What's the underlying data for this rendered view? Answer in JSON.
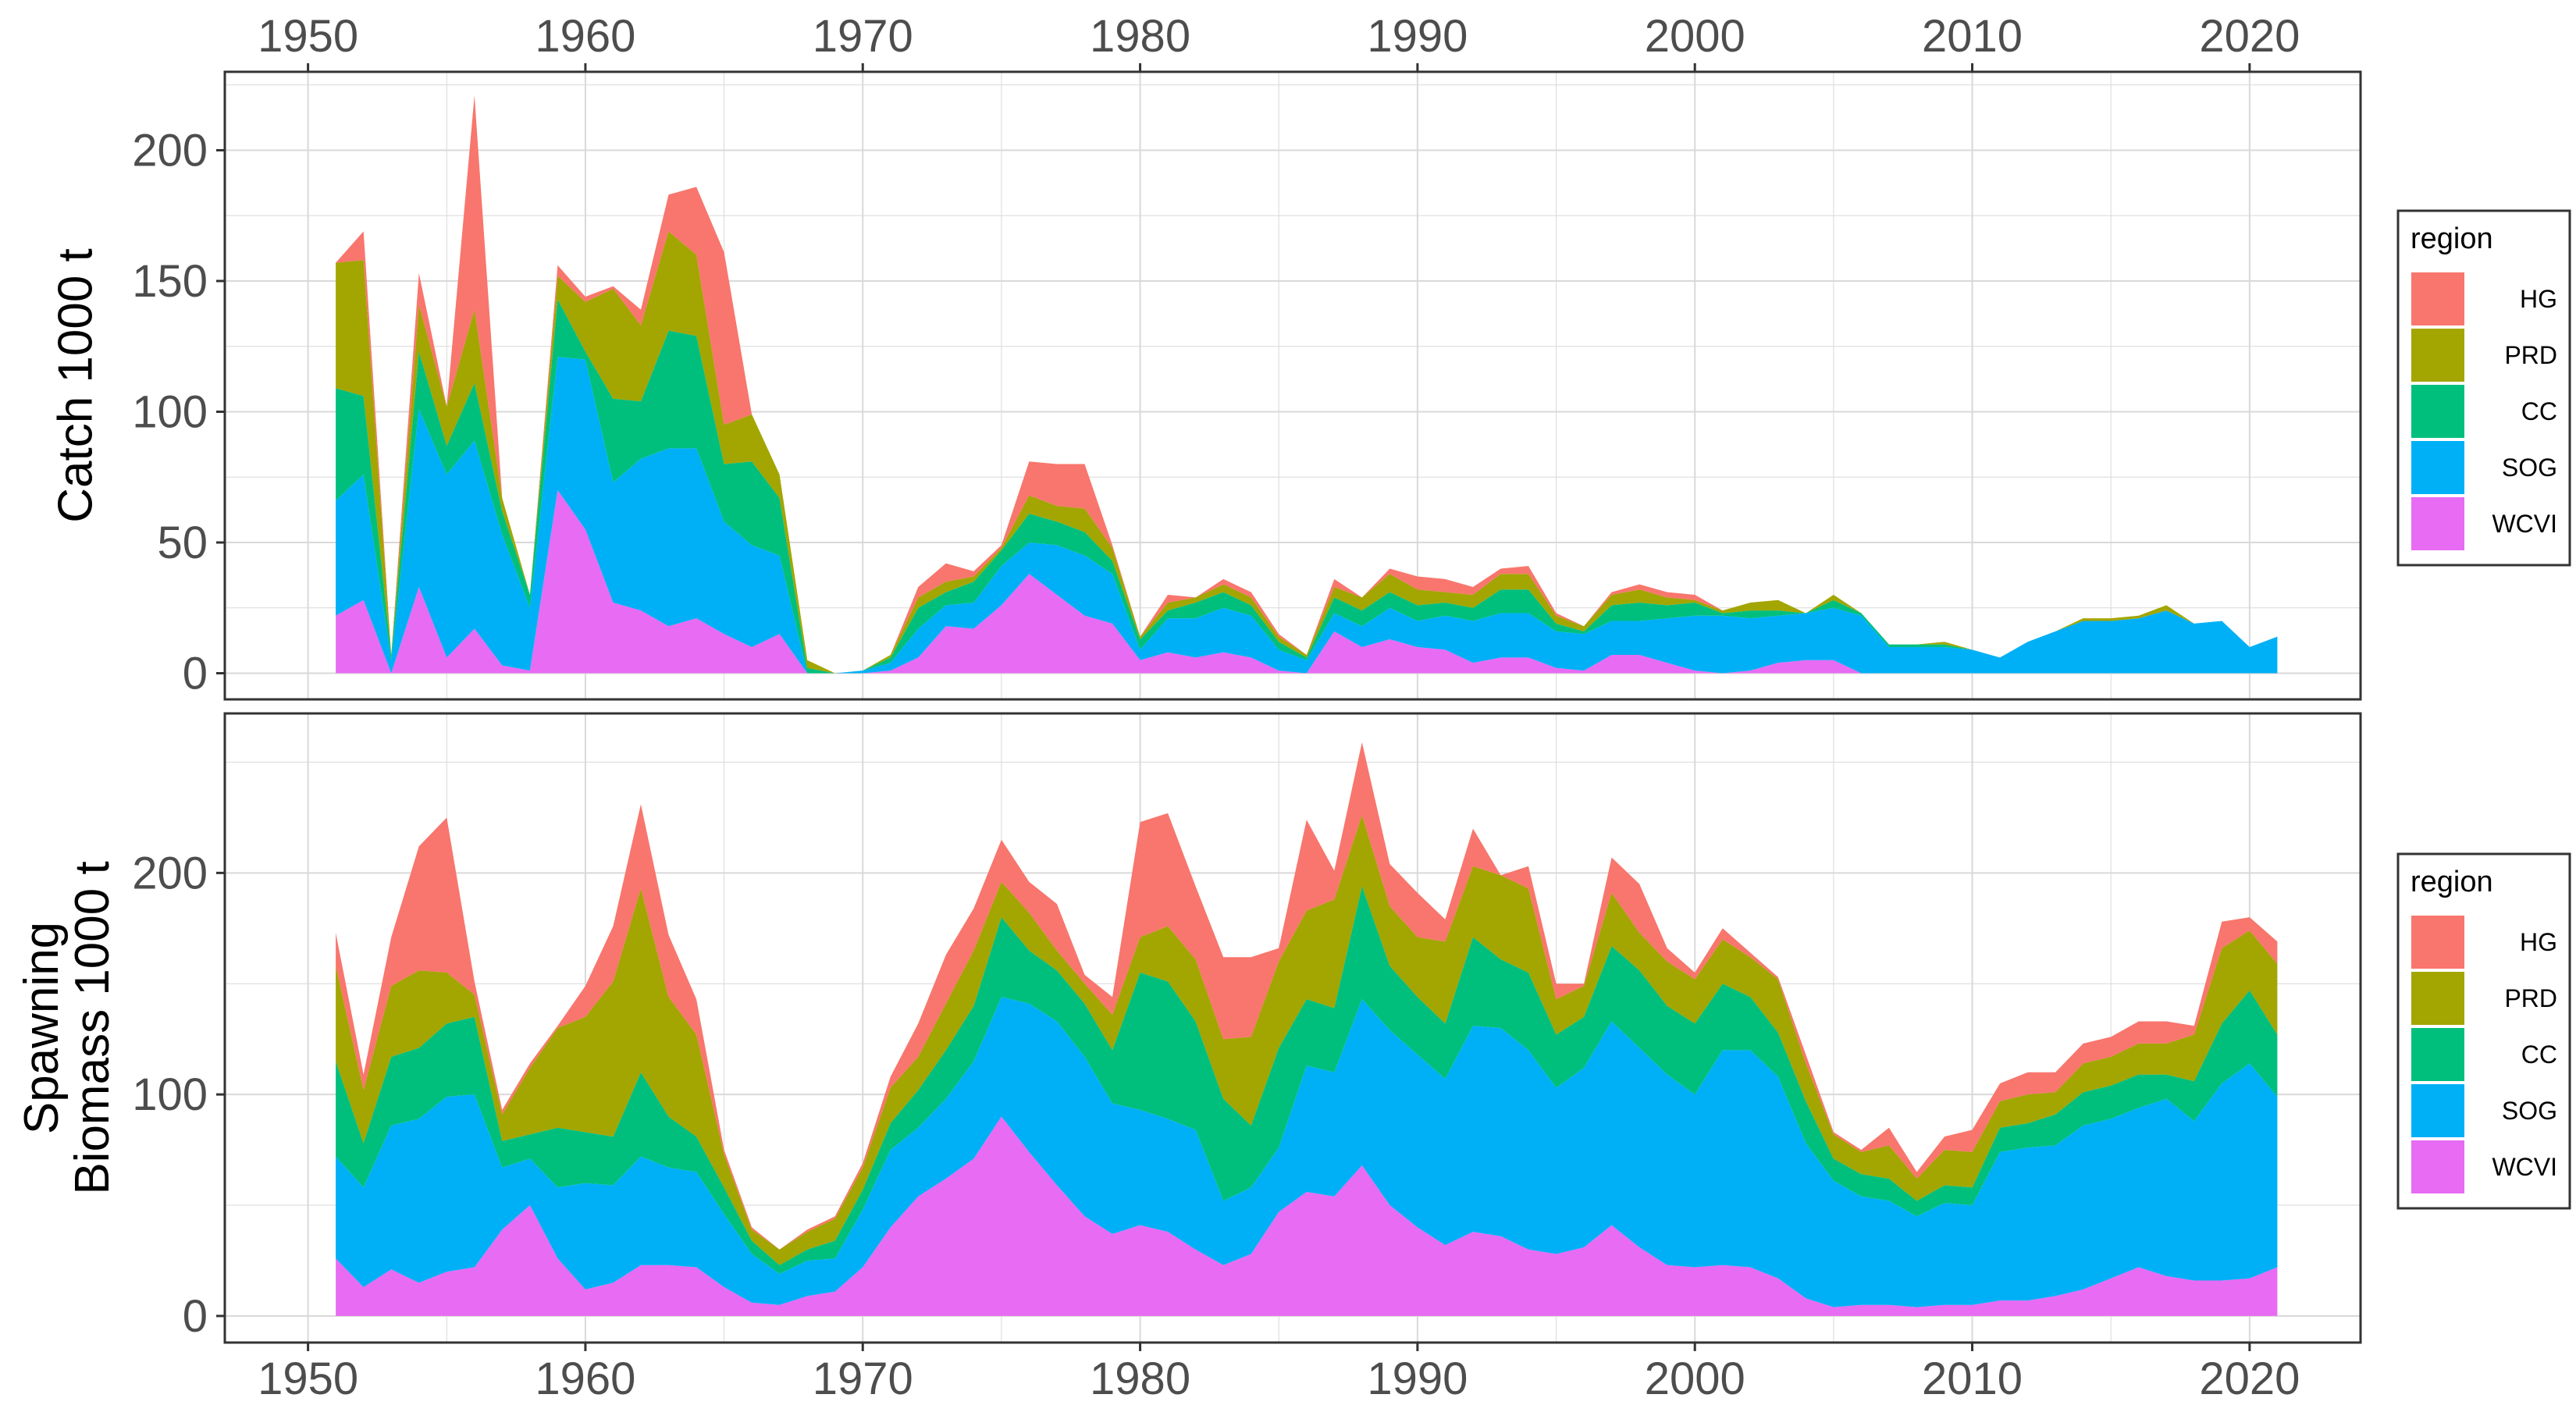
{
  "chart_data": [
    {
      "type": "area",
      "stacked": true,
      "ylabel": "Catch 1000 t",
      "xlabel": "",
      "xlim": [
        1947,
        2024
      ],
      "ylim": [
        -10,
        230
      ],
      "x_ticks": [
        1950,
        1960,
        1970,
        1980,
        1990,
        2000,
        2010,
        2020
      ],
      "y_ticks": [
        0,
        50,
        100,
        150,
        200
      ],
      "x_axis_position": "top",
      "grid": true,
      "legend": {
        "title": "region",
        "position": "right"
      },
      "x": [
        1951,
        1952,
        1953,
        1954,
        1955,
        1956,
        1957,
        1958,
        1959,
        1960,
        1961,
        1962,
        1963,
        1964,
        1965,
        1966,
        1967,
        1968,
        1969,
        1970,
        1971,
        1972,
        1973,
        1974,
        1975,
        1976,
        1977,
        1978,
        1979,
        1980,
        1981,
        1982,
        1983,
        1984,
        1985,
        1986,
        1987,
        1988,
        1989,
        1990,
        1991,
        1992,
        1993,
        1994,
        1995,
        1996,
        1997,
        1998,
        1999,
        2000,
        2001,
        2002,
        2003,
        2004,
        2005,
        2006,
        2007,
        2008,
        2009,
        2010,
        2011,
        2012,
        2013,
        2014,
        2015,
        2016,
        2017,
        2018,
        2019,
        2020,
        2021
      ],
      "series": [
        {
          "name": "WCVI",
          "values": [
            22,
            28,
            0,
            33,
            6,
            17,
            3,
            1,
            70,
            55,
            27,
            24,
            18,
            21,
            15,
            10,
            15,
            0,
            0,
            0,
            1,
            6,
            18,
            17,
            26,
            38,
            30,
            22,
            19,
            5,
            8,
            6,
            8,
            6,
            1,
            0,
            16,
            10,
            13,
            10,
            9,
            4,
            6,
            6,
            2,
            1,
            7,
            7,
            4,
            1,
            0,
            1,
            4,
            5,
            5,
            0,
            0,
            0,
            0,
            0,
            0,
            0,
            0,
            0,
            0,
            0,
            0,
            0,
            0,
            0,
            0
          ]
        },
        {
          "name": "SOG",
          "values": [
            44,
            48,
            5,
            68,
            70,
            72,
            50,
            24,
            51,
            65,
            46,
            58,
            68,
            65,
            43,
            39,
            30,
            0,
            0,
            1,
            3,
            11,
            8,
            10,
            15,
            12,
            19,
            23,
            19,
            4,
            13,
            15,
            17,
            16,
            8,
            5,
            7,
            8,
            12,
            10,
            13,
            16,
            17,
            17,
            14,
            14,
            13,
            13,
            17,
            21,
            22,
            20,
            18,
            18,
            20,
            22,
            10,
            10,
            10,
            9,
            6,
            12,
            16,
            20,
            20,
            21,
            24,
            19,
            20,
            10,
            14
          ]
        },
        {
          "name": "CC",
          "values": [
            43,
            30,
            2,
            22,
            11,
            22,
            9,
            5,
            22,
            3,
            32,
            22,
            45,
            43,
            22,
            32,
            22,
            2,
            0,
            0,
            2,
            8,
            5,
            8,
            6,
            11,
            9,
            9,
            5,
            4,
            3,
            6,
            6,
            4,
            3,
            1,
            6,
            6,
            6,
            6,
            5,
            5,
            9,
            9,
            3,
            1,
            6,
            7,
            5,
            5,
            1,
            3,
            2,
            0,
            3,
            1,
            1,
            1,
            1,
            0,
            0,
            0,
            0,
            0,
            0,
            0,
            0,
            0,
            0,
            0,
            0
          ]
        },
        {
          "name": "PRD",
          "values": [
            48,
            52,
            0,
            18,
            15,
            28,
            5,
            0,
            9,
            19,
            42,
            29,
            38,
            31,
            15,
            18,
            9,
            3,
            0,
            0,
            1,
            4,
            4,
            2,
            1,
            7,
            6,
            9,
            5,
            1,
            3,
            2,
            3,
            3,
            2,
            1,
            4,
            5,
            7,
            6,
            4,
            5,
            6,
            6,
            3,
            2,
            4,
            5,
            3,
            1,
            1,
            3,
            4,
            0,
            2,
            0,
            0,
            0,
            1,
            0,
            0,
            0,
            0,
            1,
            1,
            1,
            2,
            0,
            0,
            0,
            0
          ]
        },
        {
          "name": "HG",
          "values": [
            0,
            11,
            0,
            12,
            0,
            82,
            0,
            0,
            4,
            2,
            1,
            6,
            14,
            26,
            66,
            0,
            0,
            0,
            0,
            0,
            0,
            4,
            7,
            2,
            1,
            13,
            16,
            17,
            1,
            0,
            3,
            0,
            2,
            2,
            1,
            0,
            3,
            0,
            2,
            5,
            5,
            3,
            2,
            3,
            1,
            0,
            1,
            2,
            2,
            2,
            0,
            0,
            0,
            0,
            0,
            0,
            0,
            0,
            0,
            0,
            0,
            0,
            0,
            0,
            0,
            0,
            0,
            0,
            0,
            0,
            0
          ]
        }
      ]
    },
    {
      "type": "area",
      "stacked": true,
      "ylabel": "Spawning\nBiomass 1000 t",
      "xlabel": "",
      "xlim": [
        1947,
        2024
      ],
      "ylim": [
        -12,
        272
      ],
      "x_ticks": [
        1950,
        1960,
        1970,
        1980,
        1990,
        2000,
        2010,
        2020
      ],
      "y_ticks": [
        0,
        100,
        200
      ],
      "x_axis_position": "bottom",
      "grid": true,
      "legend": {
        "title": "region",
        "position": "right"
      },
      "x": [
        1951,
        1952,
        1953,
        1954,
        1955,
        1956,
        1957,
        1958,
        1959,
        1960,
        1961,
        1962,
        1963,
        1964,
        1965,
        1966,
        1967,
        1968,
        1969,
        1970,
        1971,
        1972,
        1973,
        1974,
        1975,
        1976,
        1977,
        1978,
        1979,
        1980,
        1981,
        1982,
        1983,
        1984,
        1985,
        1986,
        1987,
        1988,
        1989,
        1990,
        1991,
        1992,
        1993,
        1994,
        1995,
        1996,
        1997,
        1998,
        1999,
        2000,
        2001,
        2002,
        2003,
        2004,
        2005,
        2006,
        2007,
        2008,
        2009,
        2010,
        2011,
        2012,
        2013,
        2014,
        2015,
        2016,
        2017,
        2018,
        2019,
        2020,
        2021
      ],
      "series": [
        {
          "name": "WCVI",
          "values": [
            26,
            13,
            21,
            15,
            20,
            22,
            39,
            50,
            26,
            12,
            15,
            23,
            23,
            22,
            13,
            6,
            5,
            9,
            11,
            22,
            40,
            54,
            62,
            71,
            90,
            74,
            59,
            45,
            37,
            41,
            38,
            30,
            23,
            28,
            47,
            56,
            54,
            68,
            50,
            40,
            32,
            38,
            36,
            30,
            28,
            31,
            41,
            31,
            23,
            22,
            23,
            22,
            17,
            8,
            4,
            5,
            5,
            4,
            5,
            5,
            7,
            7,
            9,
            12,
            17,
            22,
            18,
            16,
            16,
            17,
            22
          ]
        },
        {
          "name": "SOG",
          "values": [
            46,
            45,
            65,
            74,
            79,
            78,
            28,
            21,
            32,
            48,
            44,
            49,
            44,
            43,
            33,
            22,
            14,
            16,
            15,
            26,
            35,
            31,
            36,
            44,
            54,
            67,
            74,
            72,
            59,
            52,
            51,
            54,
            29,
            30,
            29,
            57,
            56,
            75,
            79,
            78,
            75,
            93,
            94,
            90,
            75,
            81,
            92,
            90,
            86,
            78,
            97,
            98,
            91,
            70,
            57,
            49,
            47,
            41,
            46,
            45,
            67,
            69,
            68,
            74,
            72,
            72,
            80,
            72,
            89,
            97,
            77
          ]
        },
        {
          "name": "CC",
          "values": [
            43,
            20,
            31,
            32,
            33,
            35,
            12,
            11,
            27,
            23,
            22,
            38,
            23,
            16,
            12,
            6,
            4,
            5,
            8,
            9,
            12,
            17,
            22,
            25,
            36,
            24,
            23,
            24,
            24,
            62,
            62,
            49,
            46,
            28,
            45,
            30,
            29,
            51,
            29,
            26,
            25,
            40,
            31,
            35,
            24,
            23,
            34,
            35,
            31,
            32,
            30,
            24,
            20,
            19,
            10,
            10,
            10,
            7,
            8,
            8,
            11,
            11,
            14,
            15,
            15,
            15,
            11,
            18,
            27,
            33,
            28
          ]
        },
        {
          "name": "PRD",
          "values": [
            43,
            24,
            32,
            35,
            23,
            10,
            12,
            30,
            45,
            52,
            70,
            83,
            54,
            46,
            15,
            5,
            7,
            8,
            10,
            10,
            16,
            15,
            21,
            25,
            16,
            17,
            9,
            9,
            16,
            16,
            25,
            28,
            27,
            40,
            39,
            40,
            49,
            32,
            27,
            27,
            37,
            32,
            38,
            38,
            16,
            14,
            24,
            17,
            20,
            20,
            20,
            18,
            24,
            17,
            11,
            10,
            15,
            10,
            16,
            16,
            12,
            13,
            10,
            13,
            13,
            14,
            14,
            21,
            34,
            27,
            32
          ]
        },
        {
          "name": "HG",
          "values": [
            15,
            7,
            22,
            56,
            70,
            6,
            2,
            2,
            1,
            14,
            25,
            38,
            28,
            16,
            2,
            1,
            0,
            1,
            1,
            2,
            5,
            15,
            22,
            19,
            19,
            14,
            21,
            4,
            8,
            52,
            51,
            33,
            37,
            36,
            6,
            41,
            13,
            33,
            19,
            20,
            10,
            17,
            0,
            10,
            7,
            1,
            16,
            22,
            6,
            3,
            5,
            2,
            1,
            4,
            1,
            1,
            8,
            3,
            6,
            10,
            8,
            10,
            9,
            9,
            9,
            10,
            10,
            4,
            12,
            6,
            10
          ]
        }
      ]
    }
  ],
  "colors": {
    "WCVI": "#E76BF3",
    "SOG": "#00B0F6",
    "CC": "#00BF7D",
    "PRD": "#A3A500",
    "HG": "#F8766D"
  },
  "legends": [
    {
      "title": "region",
      "items": [
        "HG",
        "PRD",
        "CC",
        "SOG",
        "WCVI"
      ]
    },
    {
      "title": "region",
      "items": [
        "HG",
        "PRD",
        "CC",
        "SOG",
        "WCVI"
      ]
    }
  ]
}
